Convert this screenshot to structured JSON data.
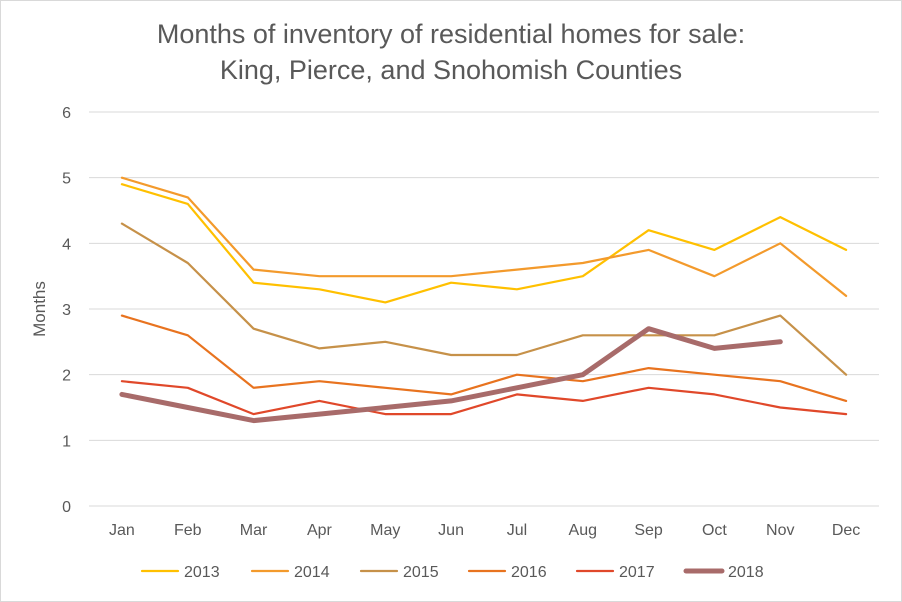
{
  "chart_data": {
    "type": "line",
    "title_line1": "Months of inventory of residential homes for sale:",
    "title_line2": "King, Pierce, and Snohomish Counties",
    "xlabel": "",
    "ylabel": "Months",
    "ylim": [
      0,
      6
    ],
    "yticks": [
      0,
      1,
      2,
      3,
      4,
      5,
      6
    ],
    "grid": true,
    "legend_position": "bottom",
    "categories": [
      "Jan",
      "Feb",
      "Mar",
      "Apr",
      "May",
      "Jun",
      "Jul",
      "Aug",
      "Sep",
      "Oct",
      "Nov",
      "Dec"
    ],
    "series": [
      {
        "name": "2013",
        "color": "#FFC000",
        "width": 2.2,
        "values": [
          4.9,
          4.6,
          3.4,
          3.3,
          3.1,
          3.4,
          3.3,
          3.5,
          4.2,
          3.9,
          4.4,
          3.9
        ]
      },
      {
        "name": "2014",
        "color": "#F39A2C",
        "width": 2.2,
        "values": [
          5.0,
          4.7,
          3.6,
          3.5,
          3.5,
          3.5,
          3.6,
          3.7,
          3.9,
          3.5,
          4.0,
          3.2
        ]
      },
      {
        "name": "2015",
        "color": "#C69149",
        "width": 2.2,
        "values": [
          4.3,
          3.7,
          2.7,
          2.4,
          2.5,
          2.3,
          2.3,
          2.6,
          2.6,
          2.6,
          2.9,
          2.0
        ]
      },
      {
        "name": "2016",
        "color": "#E8731F",
        "width": 2.2,
        "values": [
          2.9,
          2.6,
          1.8,
          1.9,
          1.8,
          1.7,
          2.0,
          1.9,
          2.1,
          2.0,
          1.9,
          1.6
        ]
      },
      {
        "name": "2017",
        "color": "#E0482A",
        "width": 2.2,
        "values": [
          1.9,
          1.8,
          1.4,
          1.6,
          1.4,
          1.4,
          1.7,
          1.6,
          1.8,
          1.7,
          1.5,
          1.4
        ]
      },
      {
        "name": "2018",
        "color": "#A86B6A",
        "width": 5,
        "values": [
          1.7,
          1.5,
          1.3,
          1.4,
          1.5,
          1.6,
          1.8,
          2.0,
          2.7,
          2.4,
          2.5,
          null
        ]
      }
    ]
  }
}
